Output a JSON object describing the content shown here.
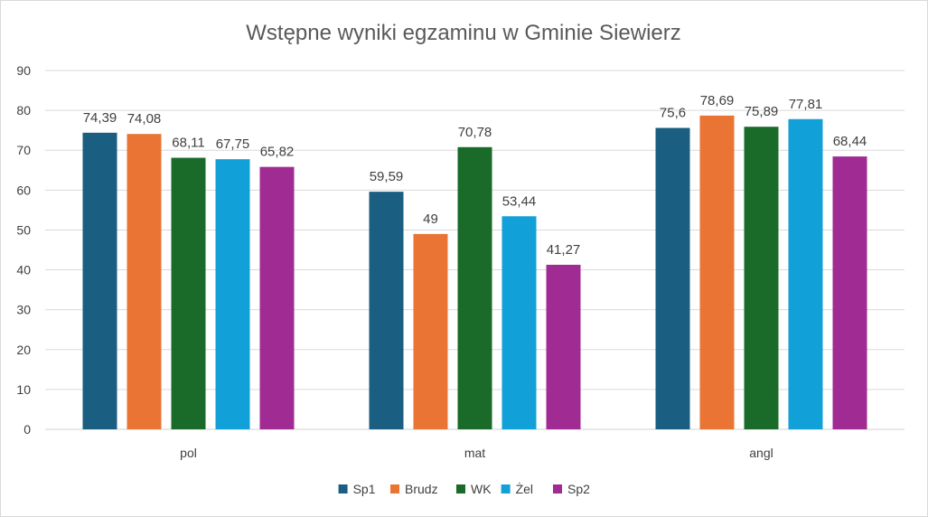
{
  "chart_data": {
    "type": "bar",
    "title": "Wstępne wyniki egzaminu w Gminie Siewierz",
    "xlabel": "",
    "ylabel": "",
    "ylim": [
      0,
      90
    ],
    "yticks": [
      0,
      10,
      20,
      30,
      40,
      50,
      60,
      70,
      80,
      90
    ],
    "grid": true,
    "legend": "bottom",
    "categories": [
      "pol",
      "mat",
      "angl"
    ],
    "series": [
      {
        "name": "Sp1",
        "color": "#1a5e82",
        "values": [
          74.39,
          59.59,
          75.6
        ],
        "labels": [
          "74,39",
          "59,59",
          "75,6"
        ]
      },
      {
        "name": "Brudz",
        "color": "#ea7434",
        "values": [
          74.08,
          49,
          78.69
        ],
        "labels": [
          "74,08",
          "49",
          "78,69"
        ]
      },
      {
        "name": "WK",
        "color": "#1a6b2a",
        "values": [
          68.11,
          70.78,
          75.89
        ],
        "labels": [
          "68,11",
          "70,78",
          "75,89"
        ]
      },
      {
        "name": "Żel",
        "color": "#12a0d8",
        "values": [
          67.75,
          53.44,
          77.81
        ],
        "labels": [
          "67,75",
          "53,44",
          "77,81"
        ]
      },
      {
        "name": "Sp2",
        "color": "#a02b93",
        "values": [
          65.82,
          41.27,
          68.44
        ],
        "labels": [
          "65,82",
          "41,27",
          "68,44"
        ]
      }
    ]
  }
}
